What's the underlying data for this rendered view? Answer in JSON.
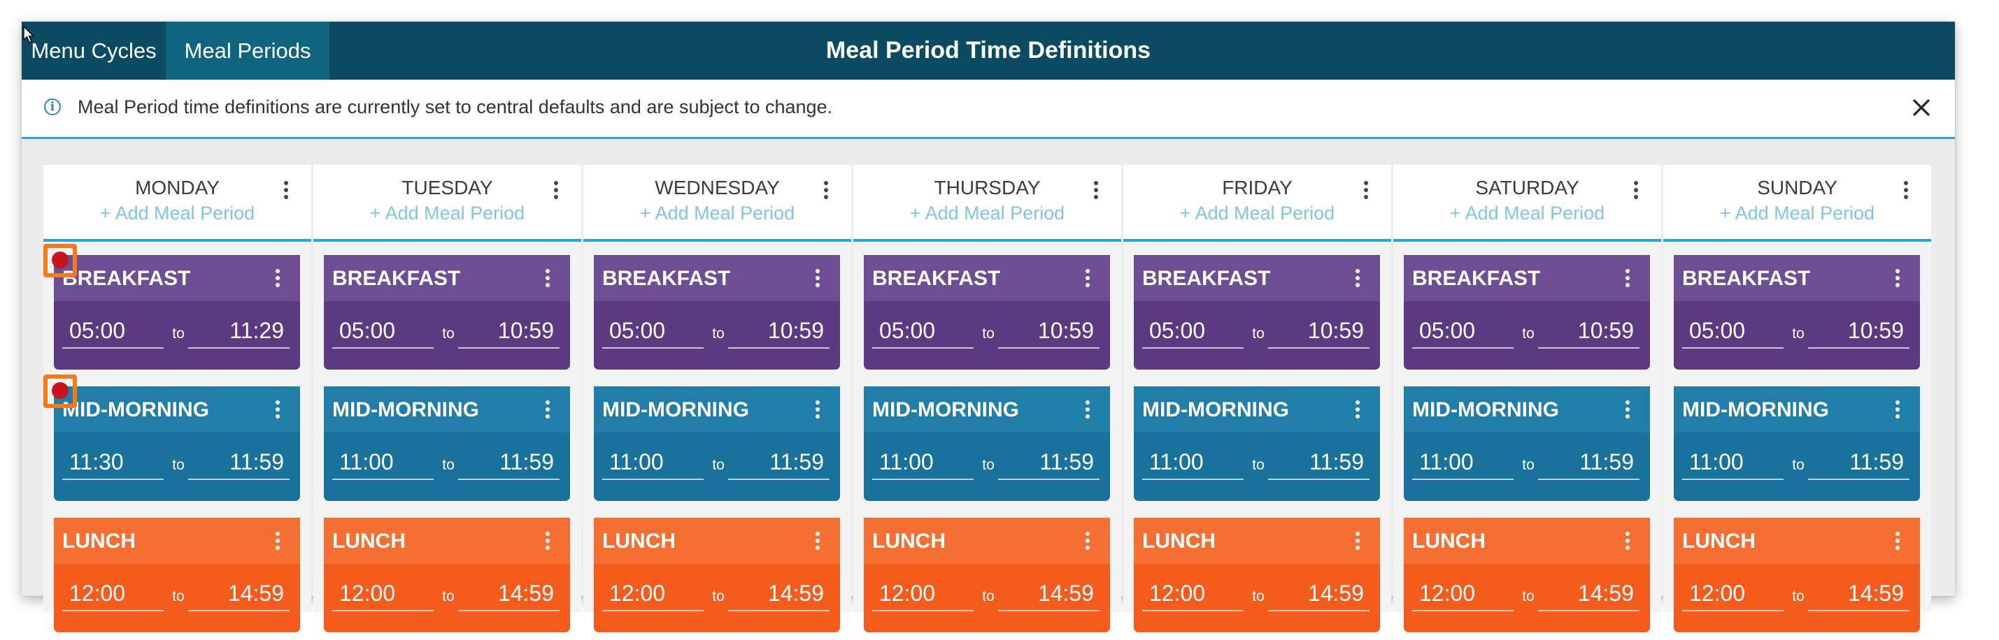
{
  "header": {
    "tabs": [
      {
        "label": "Menu Cycles"
      },
      {
        "label": "Meal Periods"
      }
    ],
    "title": "Meal Period Time Definitions"
  },
  "banner": {
    "message": "Meal Period time definitions are currently set to central defaults and are subject to change."
  },
  "add_label": "+ Add Meal Period",
  "to_label": "to",
  "colors": {
    "header": "#0b4b62",
    "active_tab": "#0f6580",
    "breakfast": "#5b3a82",
    "midmorning": "#18729c",
    "lunch": "#f45b1c",
    "accent": "#2aa6d6",
    "marker": "#f47a1c"
  },
  "days": [
    {
      "name": "MONDAY",
      "periods": [
        {
          "name": "BREAKFAST",
          "start": "05:00",
          "end": "11:29"
        },
        {
          "name": "MID-MORNING",
          "start": "11:30",
          "end": "11:59"
        },
        {
          "name": "LUNCH",
          "start": "12:00",
          "end": "14:59"
        }
      ]
    },
    {
      "name": "TUESDAY",
      "periods": [
        {
          "name": "BREAKFAST",
          "start": "05:00",
          "end": "10:59"
        },
        {
          "name": "MID-MORNING",
          "start": "11:00",
          "end": "11:59"
        },
        {
          "name": "LUNCH",
          "start": "12:00",
          "end": "14:59"
        }
      ]
    },
    {
      "name": "WEDNESDAY",
      "periods": [
        {
          "name": "BREAKFAST",
          "start": "05:00",
          "end": "10:59"
        },
        {
          "name": "MID-MORNING",
          "start": "11:00",
          "end": "11:59"
        },
        {
          "name": "LUNCH",
          "start": "12:00",
          "end": "14:59"
        }
      ]
    },
    {
      "name": "THURSDAY",
      "periods": [
        {
          "name": "BREAKFAST",
          "start": "05:00",
          "end": "10:59"
        },
        {
          "name": "MID-MORNING",
          "start": "11:00",
          "end": "11:59"
        },
        {
          "name": "LUNCH",
          "start": "12:00",
          "end": "14:59"
        }
      ]
    },
    {
      "name": "FRIDAY",
      "periods": [
        {
          "name": "BREAKFAST",
          "start": "05:00",
          "end": "10:59"
        },
        {
          "name": "MID-MORNING",
          "start": "11:00",
          "end": "11:59"
        },
        {
          "name": "LUNCH",
          "start": "12:00",
          "end": "14:59"
        }
      ]
    },
    {
      "name": "SATURDAY",
      "periods": [
        {
          "name": "BREAKFAST",
          "start": "05:00",
          "end": "10:59"
        },
        {
          "name": "MID-MORNING",
          "start": "11:00",
          "end": "11:59"
        },
        {
          "name": "LUNCH",
          "start": "12:00",
          "end": "14:59"
        }
      ]
    },
    {
      "name": "SUNDAY",
      "periods": [
        {
          "name": "BREAKFAST",
          "start": "05:00",
          "end": "10:59"
        },
        {
          "name": "MID-MORNING",
          "start": "11:00",
          "end": "11:59"
        },
        {
          "name": "LUNCH",
          "start": "12:00",
          "end": "14:59"
        }
      ]
    }
  ]
}
